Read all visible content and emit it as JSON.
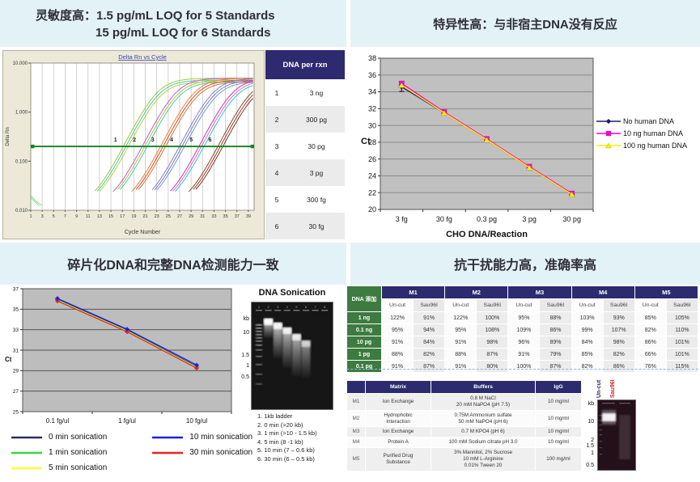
{
  "colors": {
    "panel_title_bg": "#e3f2f6",
    "navy": "#2d2a70",
    "green": "#3d7b40",
    "threshold_green": "#15851f"
  },
  "panels": {
    "sensitivity": {
      "title_prefix": "灵敏度高：",
      "title_line1": "1.5 pg/mL LOQ for 5 Standards",
      "title_line2": "15 pg/mL LOQ for 6 Standards",
      "table": {
        "header": "DNA per rxn",
        "rows": [
          [
            "1",
            "3 ng"
          ],
          [
            "2",
            "300 pg"
          ],
          [
            "3",
            "30 pg"
          ],
          [
            "4",
            "3 pg"
          ],
          [
            "5",
            "300 fg"
          ],
          [
            "6",
            "30 fg"
          ]
        ]
      }
    },
    "specificity": {
      "title": "特异性高：与非宿主DNA没有反应"
    },
    "fragmentation": {
      "title": "碎片化DNA和完整DNA检测能力一致",
      "gel": {
        "title": "DNA Sonication",
        "ladder": [
          "kb",
          "10",
          "1.5",
          "1",
          "0.5"
        ],
        "lane_count": 8,
        "notes": [
          "1. 1kb ladder",
          "2. 0 min (>20 kb)",
          "3. 1 min (>10 - 1.5 kb)",
          "4. 5 min (8 -1 kb)",
          "5. 10 min (7 – 0.6 kb)",
          "6. 30 min (6 – 0.5 kb)"
        ]
      }
    },
    "interference": {
      "title": "抗干扰能力高，准确率高",
      "recovery_table": {
        "corner": "DNA 添加",
        "groups": [
          "M1",
          "M2",
          "M3",
          "M4",
          "M5"
        ],
        "subcols": [
          "Un-cut",
          "Sau96I"
        ],
        "rows": [
          {
            "label": "1 ng",
            "values": [
              "122%",
              "91%",
              "122%",
              "100%",
              "95%",
              "88%",
              "103%",
              "93%",
              "85%",
              "105%"
            ]
          },
          {
            "label": "0.1 ng",
            "values": [
              "95%",
              "94%",
              "95%",
              "108%",
              "109%",
              "86%",
              "99%",
              "107%",
              "82%",
              "110%"
            ]
          },
          {
            "label": "10 pg",
            "values": [
              "91%",
              "84%",
              "91%",
              "98%",
              "96%",
              "89%",
              "84%",
              "98%",
              "86%",
              "101%"
            ]
          },
          {
            "label": "1 pg",
            "values": [
              "88%",
              "82%",
              "88%",
              "87%",
              "91%",
              "79%",
              "85%",
              "82%",
              "66%",
              "101%"
            ]
          },
          {
            "label": "0.1 pg",
            "values": [
              "91%",
              "87%",
              "91%",
              "80%",
              "100%",
              "87%",
              "82%",
              "86%",
              "76%",
              "115%"
            ]
          }
        ]
      },
      "matrix_table": {
        "headers": [
          "",
          "Matrix",
          "Buffers",
          "IgG"
        ],
        "rows": [
          {
            "id": "M1",
            "matrix": [
              "Ion Exchange"
            ],
            "buffers": [
              "0.8 M NaCl",
              "20 mM NaPO4 (pH 7.5)"
            ],
            "igg": "10 mg/ml"
          },
          {
            "id": "M2",
            "matrix": [
              "Hydrophobic",
              "Interaction"
            ],
            "buffers": [
              "0.75M Ammonium sulfate",
              "50 mM NaPO4 (pH 6)"
            ],
            "igg": "10 mg/ml"
          },
          {
            "id": "M3",
            "matrix": [
              "Ion Exchange"
            ],
            "buffers": [
              "0.7 M KPO4 (pH 6)"
            ],
            "igg": "10 mg/ml"
          },
          {
            "id": "M4",
            "matrix": [
              "Protein A"
            ],
            "buffers": [
              "100 mM Sodium citrate pH 3.0"
            ],
            "igg": "10 mg/ml"
          },
          {
            "id": "M5",
            "matrix": [
              "Purified Drug",
              "Substance"
            ],
            "buffers": [
              "3% Mannitol, 2% Sucrose",
              "10 mM L-Arginine",
              "0.01% Tween 20"
            ],
            "igg": "100 mg/ml"
          }
        ]
      },
      "gel": {
        "lane_labels": [
          {
            "text": "Un-cut",
            "color": "#2d2a70"
          },
          {
            "text": "Sau96I",
            "color": "#cc2222"
          }
        ],
        "ladder": [
          "kb",
          "10",
          "2",
          "1.5",
          "1",
          "0.5"
        ]
      }
    }
  },
  "chart_data": [
    {
      "id": "qpcr",
      "type": "line",
      "yscale": "log",
      "title": "Delta Rn vs Cycle",
      "xlabel": "Cycle Number",
      "ylabel": "Delta Rn",
      "xlim": [
        1,
        40
      ],
      "x_ticks": [
        1,
        3,
        5,
        7,
        9,
        11,
        13,
        15,
        17,
        19,
        21,
        23,
        25,
        27,
        29,
        31,
        33,
        35,
        37,
        39
      ],
      "ylim": [
        0.01,
        10
      ],
      "y_ticks": [
        {
          "v": 10,
          "label": "10.000"
        },
        {
          "v": 1,
          "label": "1.000"
        },
        {
          "v": 0.1,
          "label": "0.100"
        },
        {
          "v": 0.01,
          "label": "0.010"
        }
      ],
      "threshold": 0.2,
      "groups": [
        {
          "label": "1",
          "amount": "3 ng",
          "ct": 17.6
        },
        {
          "label": "2",
          "amount": "300 pg",
          "ct": 20.9
        },
        {
          "label": "3",
          "amount": "30 pg",
          "ct": 24.1
        },
        {
          "label": "4",
          "amount": "3 pg",
          "ct": 27.4
        },
        {
          "label": "5",
          "amount": "300 fg",
          "ct": 30.8
        },
        {
          "label": "6",
          "amount": "30 fg",
          "ct": 34.1
        }
      ],
      "replicate_colors": [
        [
          "#9ccd32",
          "#49c7b8",
          "#b5d832"
        ],
        [
          "#c05ad0",
          "#a9cc33",
          "#52c3b8"
        ],
        [
          "#f08030",
          "#e8402e",
          "#c08030"
        ],
        [
          "#7886c8",
          "#9070c0",
          "#60a0d8"
        ],
        [
          "#d038b0",
          "#e070d0",
          "#30c8c0"
        ],
        [
          "#8a4a22",
          "#a83832",
          "#6e3c1c"
        ]
      ]
    },
    {
      "id": "specificity",
      "type": "line",
      "categories": [
        "3 fg",
        "30 fg",
        "0.3 pg",
        "3 pg",
        "30 pg"
      ],
      "xlabel": "CHO DNA/Reaction",
      "ylabel": "Ct",
      "ylim": [
        20,
        38
      ],
      "ystep": 2,
      "grid": true,
      "legend_position": "right",
      "error_bar": {
        "category": 0,
        "center": 34.6,
        "half": 0.55
      },
      "series": [
        {
          "name": "No human DNA",
          "color": "#191970",
          "marker": "diamond",
          "values": [
            34.6,
            31.5,
            28.3,
            25.0,
            21.8
          ]
        },
        {
          "name": "10 ng human DNA",
          "color": "#ff00cc",
          "marker": "square",
          "values": [
            35.0,
            31.6,
            28.4,
            25.1,
            21.9
          ]
        },
        {
          "name": "100 ng human DNA",
          "color": "#ffee00",
          "marker": "triangle",
          "values": [
            34.8,
            31.5,
            28.3,
            25.0,
            21.8
          ]
        }
      ]
    },
    {
      "id": "sonication",
      "type": "line",
      "categories": [
        "0.1 fg/ul",
        "1 fg/ul",
        "10 fg/ul"
      ],
      "ylabel": "Ct",
      "ylim": [
        25,
        37
      ],
      "ystep": 2,
      "grid": true,
      "legend_position": "bottom",
      "draw_order": [
        0,
        1,
        2,
        4,
        3
      ],
      "series": [
        {
          "name": "0 min sonication",
          "color": "#2b2b6b",
          "marker": "diamond",
          "values": [
            35.95,
            32.95,
            29.4
          ]
        },
        {
          "name": "1 min sonication",
          "color": "#3ed43e",
          "marker": "diamond",
          "values": [
            35.9,
            32.9,
            29.35
          ]
        },
        {
          "name": "5 min sonication",
          "color": "#ffff33",
          "marker": "diamond",
          "values": [
            35.85,
            32.85,
            29.3
          ]
        },
        {
          "name": "10 min sonication",
          "color": "#1f1fe8",
          "marker": "diamond",
          "values": [
            36.05,
            33.05,
            29.55
          ]
        },
        {
          "name": "30 min sonication",
          "color": "#e82222",
          "marker": "diamond",
          "values": [
            35.8,
            32.8,
            29.25
          ]
        }
      ]
    }
  ]
}
